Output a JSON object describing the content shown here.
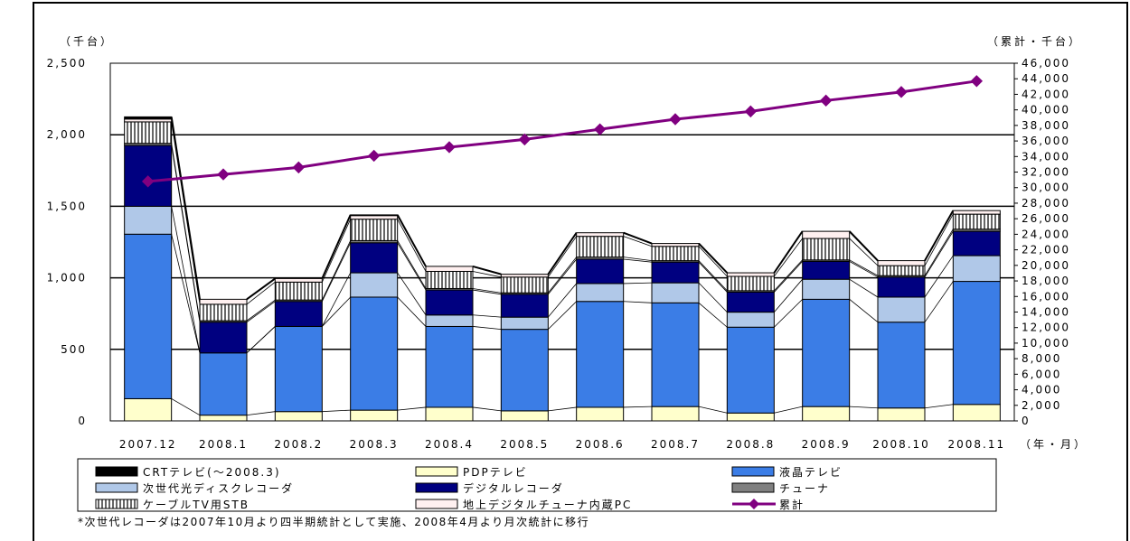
{
  "chart_data": {
    "type": "bar",
    "subtype": "stacked-bar-with-line",
    "categories": [
      "2007.12",
      "2008.1",
      "2008.2",
      "2008.3",
      "2008.4",
      "2008.5",
      "2008.6",
      "2008.7",
      "2008.8",
      "2008.9",
      "2008.10",
      "2008.11"
    ],
    "xlabel": "（年・月）",
    "ylabel_left": "（千台）",
    "ylabel_right": "（累計・千台）",
    "ylim_left": [
      0,
      2500
    ],
    "ylim_right": [
      0,
      46000
    ],
    "yticks_left": [
      "0",
      "500",
      "1,000",
      "1,500",
      "2,000",
      "2,500"
    ],
    "yticks_right": [
      "0",
      "2,000",
      "4,000",
      "6,000",
      "8,000",
      "10,000",
      "12,000",
      "14,000",
      "16,000",
      "18,000",
      "20,000",
      "22,000",
      "24,000",
      "26,000",
      "28,000",
      "30,000",
      "32,000",
      "34,000",
      "36,000",
      "38,000",
      "40,000",
      "42,000",
      "44,000",
      "46,000"
    ],
    "gridlines": "horizontal-major",
    "legend_position": "bottom",
    "series": [
      {
        "name": "PDPテレビ",
        "axis": "left",
        "color": "#ffffcc",
        "values": [
          155,
          40,
          65,
          75,
          95,
          70,
          95,
          100,
          55,
          100,
          90,
          115
        ]
      },
      {
        "name": "液晶テレビ",
        "axis": "left",
        "color": "#3b7de6",
        "values": [
          1150,
          435,
          595,
          790,
          565,
          570,
          740,
          725,
          600,
          750,
          600,
          860
        ]
      },
      {
        "name": "次世代光ディスクレコーダ",
        "axis": "left",
        "color": "#b0c8e8",
        "values": [
          195,
          0,
          0,
          170,
          80,
          85,
          125,
          140,
          105,
          140,
          175,
          180
        ]
      },
      {
        "name": "デジタルレコーダ",
        "axis": "left",
        "color": "#000080",
        "values": [
          425,
          215,
          175,
          210,
          175,
          160,
          170,
          145,
          140,
          125,
          140,
          170
        ]
      },
      {
        "name": "チューナ",
        "axis": "left",
        "color": "#808080",
        "values": [
          15,
          10,
          10,
          15,
          10,
          10,
          15,
          10,
          10,
          10,
          10,
          15
        ]
      },
      {
        "name": "ケーブルTV用STB",
        "axis": "left",
        "color": "#ffffff",
        "pattern": "vertical-hatch",
        "values": [
          150,
          115,
          125,
          150,
          120,
          110,
          145,
          100,
          100,
          150,
          70,
          105
        ]
      },
      {
        "name": "地上デジタルチューナ内蔵PC",
        "axis": "left",
        "color": "#fff0f0",
        "values": [
          20,
          35,
          25,
          25,
          35,
          20,
          25,
          20,
          25,
          50,
          35,
          25
        ]
      },
      {
        "name": "CRTテレビ(～2008.3)",
        "axis": "left",
        "color": "#000000",
        "values": [
          15,
          0,
          0,
          5,
          0,
          0,
          0,
          0,
          0,
          0,
          0,
          0
        ]
      },
      {
        "name": "累計",
        "axis": "right",
        "type": "line",
        "color": "#800080",
        "values": [
          30800,
          31700,
          32600,
          34100,
          35200,
          36200,
          37500,
          38800,
          39800,
          41200,
          42300,
          43700
        ]
      }
    ]
  },
  "legend": [
    {
      "key": "crt",
      "label": "CRTテレビ(～2008.3)"
    },
    {
      "key": "pdp",
      "label": "PDPテレビ"
    },
    {
      "key": "lcd",
      "label": "液晶テレビ"
    },
    {
      "key": "bd",
      "label": "次世代光ディスクレコーダ"
    },
    {
      "key": "dvr",
      "label": "デジタルレコーダ"
    },
    {
      "key": "tuner",
      "label": "チューナ"
    },
    {
      "key": "stb",
      "label": "ケーブルTV用STB"
    },
    {
      "key": "pc",
      "label": "地上デジタルチューナ内蔵PC"
    },
    {
      "key": "cum",
      "label": "累計"
    }
  ],
  "footnote": "*次世代レコーダは2007年10月より四半期統計として実施、2008年4月より月次統計に移行"
}
